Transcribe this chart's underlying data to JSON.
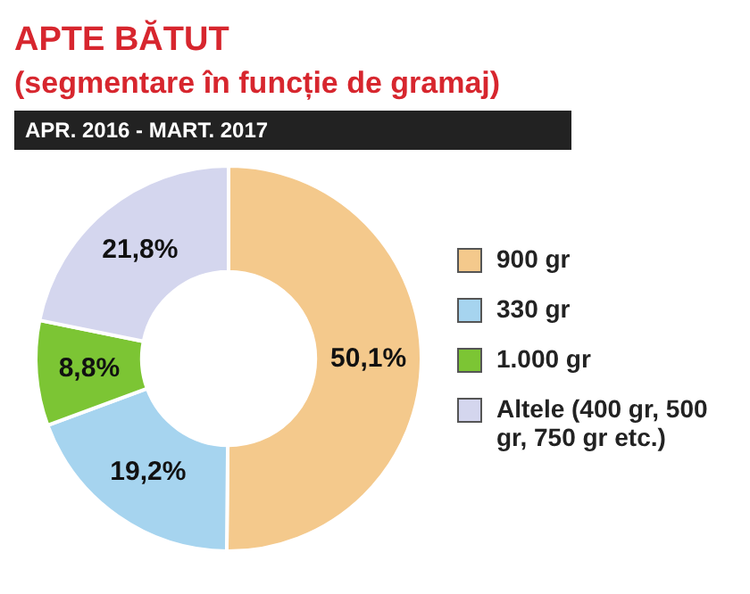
{
  "chart_data": {
    "type": "donut",
    "title": "APTE BĂTUT",
    "subtitle": "(segmentare în funcție de gramaj)",
    "annotations": [
      "APR. 2016 - MART. 2017"
    ],
    "categories": [
      "900 gr",
      "330 gr",
      "1.000 gr",
      "Altele (400 gr, 500 gr, 750 gr etc.)"
    ],
    "values": [
      50.1,
      19.2,
      8.8,
      21.8
    ],
    "colors": [
      "#f4c98c",
      "#a6d4ef",
      "#7cc534",
      "#d4d6ee"
    ],
    "value_labels": [
      "50,1%",
      "19,2%",
      "8,8%",
      "21,8%"
    ],
    "legend": "right"
  }
}
